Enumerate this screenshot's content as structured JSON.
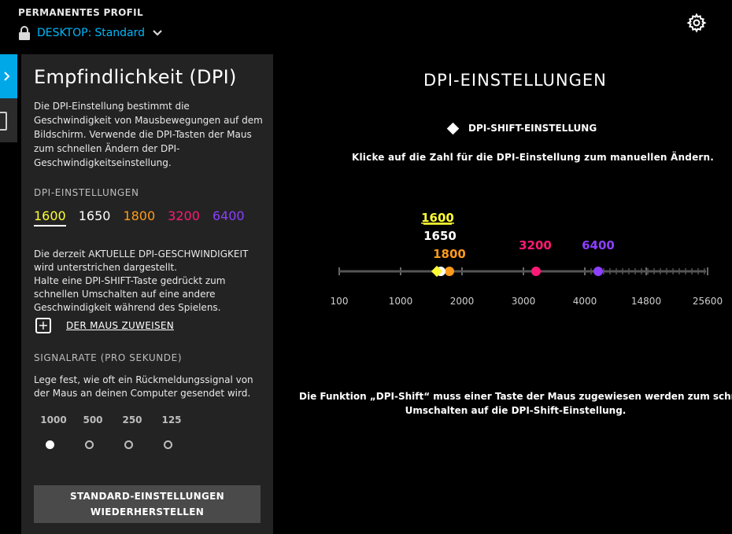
{
  "header": {
    "profile_label": "PERMANENTES PROFIL",
    "device": "DESKTOP:",
    "profile_name": "Standard"
  },
  "icons": {
    "lock": "lock-icon",
    "chevron": "chevron-down-icon",
    "settings": "gear-icon",
    "tab_arrow": "chevron-right-icon",
    "tab_device": "device-icon",
    "assign": "plus-icon"
  },
  "panel": {
    "title": "Empfindlichkeit (DPI)",
    "description": "Die DPI-Einstellung bestimmt die Geschwindigkeit von Mausbewegungen auf dem Bildschirm. Verwende die DPI-Tasten der Maus zum schnellen Ändern der DPI-Geschwindigkeitseinstellung.",
    "dpi_section_label": "DPI-EINSTELLUNGEN",
    "dpi_levels": [
      {
        "value": "1600",
        "color": "#ffff33",
        "active": true
      },
      {
        "value": "1650",
        "color": "#ffffff",
        "active": false
      },
      {
        "value": "1800",
        "color": "#ff9b1a",
        "active": false
      },
      {
        "value": "3200",
        "color": "#ff1a75",
        "active": false
      },
      {
        "value": "6400",
        "color": "#8c3fff",
        "active": false
      }
    ],
    "current_info": "Die derzeit AKTUELLE DPI-GESCHWINDIGKEIT wird unterstrichen dargestellt.",
    "shift_info": "Halte eine DPI-SHIFT-Taste gedrückt zum schnellen Umschalten auf eine andere Geschwindigkeit während des Spielens.",
    "assign_label": "DER MAUS ZUWEISEN",
    "report_rate_label": "SIGNALRATE (PRO SEKUNDE)",
    "report_rate_desc": "Lege fest, wie oft ein Rückmeldungssignal von der Maus an deinen Computer gesendet wird.",
    "report_rates": [
      "1000",
      "500",
      "250",
      "125"
    ],
    "report_rate_selected": "1000",
    "reset_line1": "STANDARD-EINSTELLUNGEN",
    "reset_line2": "WIEDERHERSTELLEN"
  },
  "main": {
    "title": "DPI-EINSTELLUNGEN",
    "shift_label": "DPI-SHIFT-EINSTELLUNG",
    "hint": "Klicke auf die Zahl für die DPI-Einstellung zum manuellen Ändern.",
    "slider_ticks": [
      "100",
      "1000",
      "2000",
      "3000",
      "4000",
      "14800",
      "25600"
    ],
    "dpi_shift_value": 1600,
    "info_line1": "Die Funktion „DPI-Shift“ muss einer Taste der Maus zugewiesen werden zum schnel",
    "info_line2": "Umschalten auf die DPI-Shift-Einstellung."
  }
}
